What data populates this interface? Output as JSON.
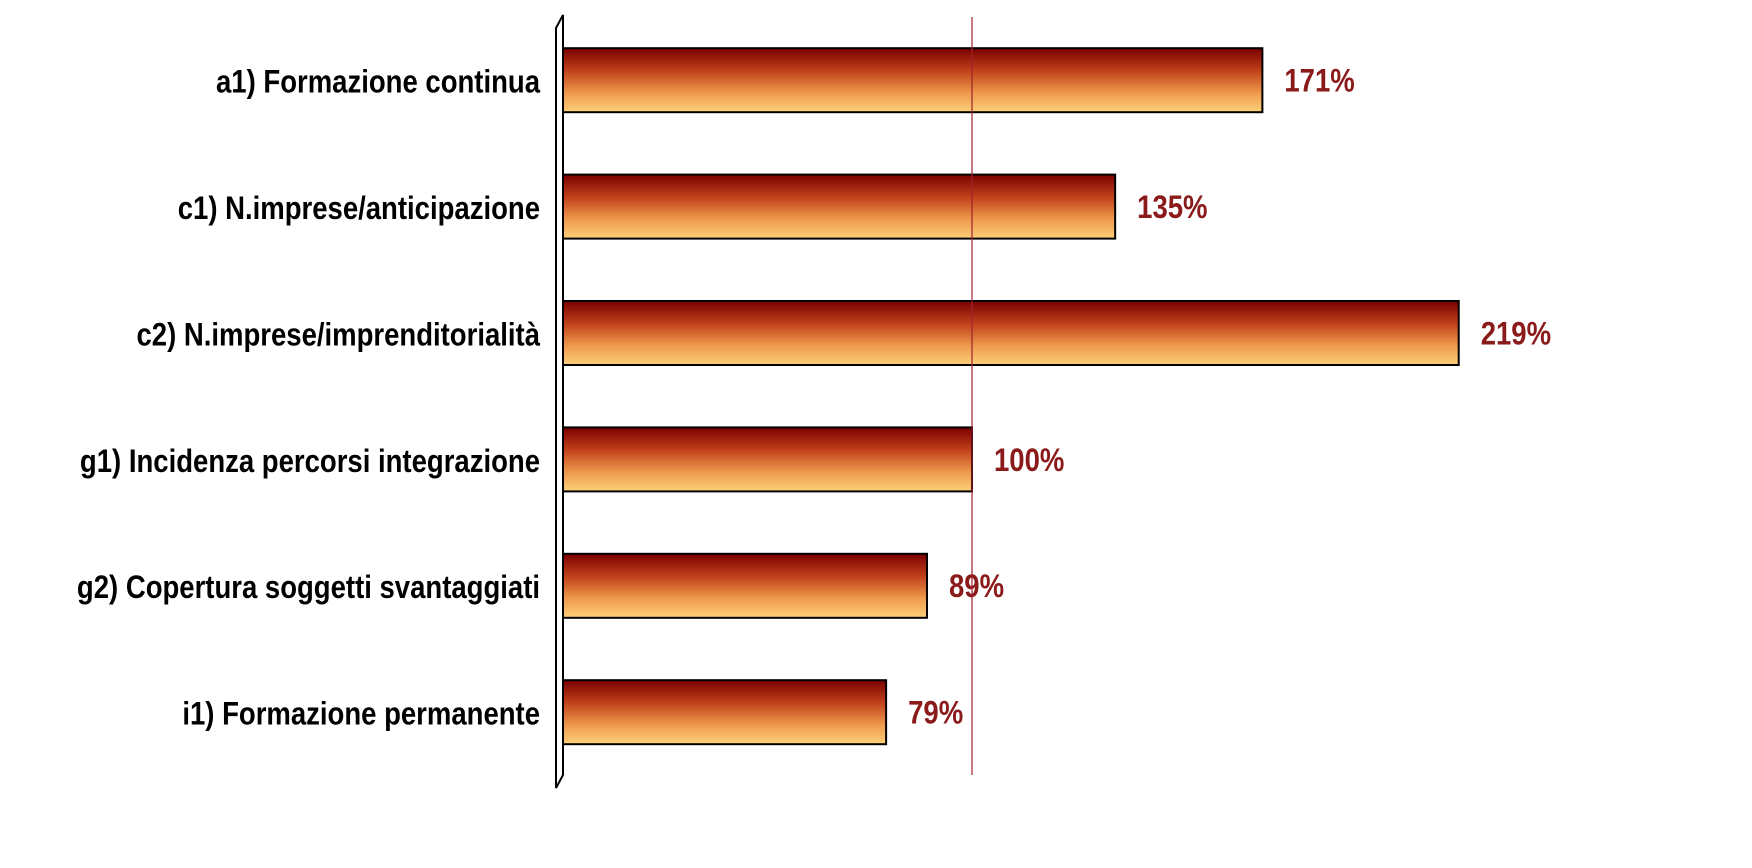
{
  "chart_data": {
    "type": "hbar",
    "categories": [
      "a1) Formazione continua",
      "c1) N.imprese/anticipazione",
      "c2) N.imprese/imprenditorialità",
      "g1) Incidenza percorsi integrazione",
      "g2) Copertura soggetti svantaggiati",
      "i1) Formazione permanente"
    ],
    "values": [
      171,
      135,
      219,
      100,
      89,
      79
    ],
    "value_labels": [
      "171%",
      "135%",
      "219%",
      "100%",
      "89%",
      "79%"
    ],
    "color": "#b22a10",
    "label_color": "#8b1a1a",
    "reference_line": 100,
    "xlim": [
      0,
      250
    ]
  }
}
